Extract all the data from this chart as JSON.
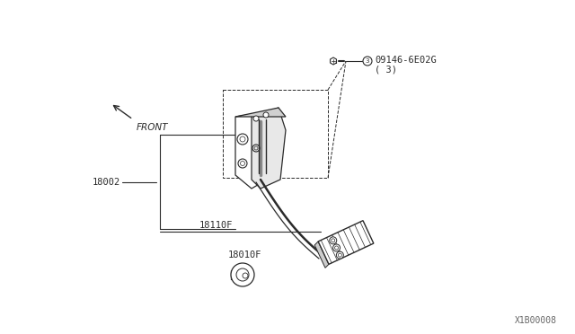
{
  "bg_color": "#ffffff",
  "line_color": "#2a2a2a",
  "text_color": "#2a2a2a",
  "label_part_num": "09146-6E02G",
  "label_part_sub": "( 3)",
  "label_18002": "18002",
  "label_18110F": "18110F",
  "label_18010F": "18010F",
  "label_front": "FRONT",
  "watermark": "X1B00008",
  "font_size": 7.5,
  "font_size_wm": 7
}
